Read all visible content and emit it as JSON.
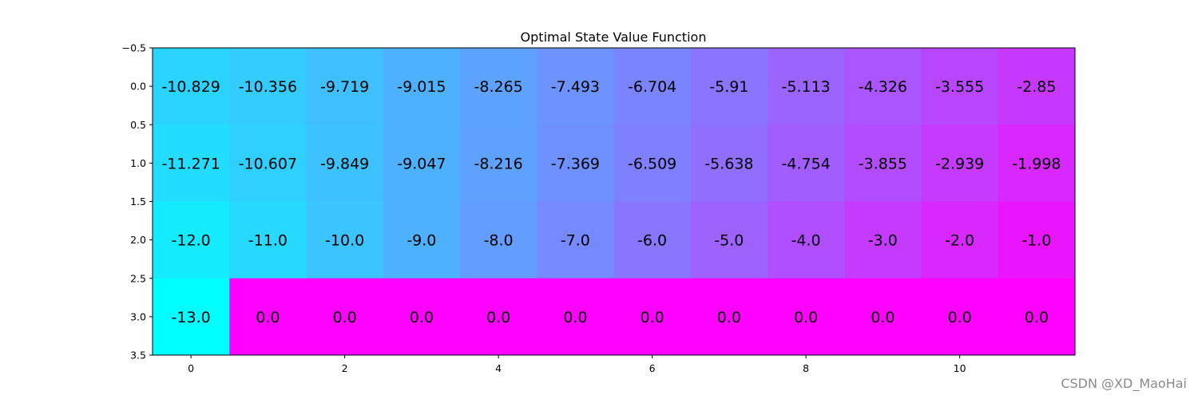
{
  "chart_data": {
    "type": "heatmap",
    "title": "Optimal State Value Function",
    "xlabel": "",
    "ylabel": "",
    "colormap": "cool",
    "color_low": "#00ffff",
    "color_high": "#ff00ff",
    "vmin": -13.0,
    "vmax": 0.0,
    "x_range": [
      -0.5,
      11.5
    ],
    "y_range": [
      -0.5,
      3.5
    ],
    "x_ticks": [
      0,
      2,
      4,
      6,
      8,
      10
    ],
    "x_tick_labels": [
      "0",
      "2",
      "4",
      "6",
      "8",
      "10"
    ],
    "y_ticks": [
      -0.5,
      0.0,
      0.5,
      1.0,
      1.5,
      2.0,
      2.5,
      3.0,
      3.5
    ],
    "y_tick_labels": [
      "−0.5",
      "0.0",
      "0.5",
      "1.0",
      "1.5",
      "2.0",
      "2.5",
      "3.0",
      "3.5"
    ],
    "values": [
      [
        -10.829,
        -10.356,
        -9.719,
        -9.015,
        -8.265,
        -7.493,
        -6.704,
        -5.91,
        -5.113,
        -4.326,
        -3.555,
        -2.85
      ],
      [
        -11.271,
        -10.607,
        -9.849,
        -9.047,
        -8.216,
        -7.369,
        -6.509,
        -5.638,
        -4.754,
        -3.855,
        -2.939,
        -1.998
      ],
      [
        -12.0,
        -11.0,
        -10.0,
        -9.0,
        -8.0,
        -7.0,
        -6.0,
        -5.0,
        -4.0,
        -3.0,
        -2.0,
        -1.0
      ],
      [
        -13.0,
        0.0,
        0.0,
        0.0,
        0.0,
        0.0,
        0.0,
        0.0,
        0.0,
        0.0,
        0.0,
        0.0
      ]
    ],
    "cell_labels": [
      [
        "-10.829",
        "-10.356",
        "-9.719",
        "-9.015",
        "-8.265",
        "-7.493",
        "-6.704",
        "-5.91",
        "-5.113",
        "-4.326",
        "-3.555",
        "-2.85"
      ],
      [
        "-11.271",
        "-10.607",
        "-9.849",
        "-9.047",
        "-8.216",
        "-7.369",
        "-6.509",
        "-5.638",
        "-4.754",
        "-3.855",
        "-2.939",
        "-1.998"
      ],
      [
        "-12.0",
        "-11.0",
        "-10.0",
        "-9.0",
        "-8.0",
        "-7.0",
        "-6.0",
        "-5.0",
        "-4.0",
        "-3.0",
        "-2.0",
        "-1.0"
      ],
      [
        "-13.0",
        "0.0",
        "0.0",
        "0.0",
        "0.0",
        "0.0",
        "0.0",
        "0.0",
        "0.0",
        "0.0",
        "0.0",
        "0.0"
      ]
    ]
  },
  "watermark": "CSDN @XD_MaoHai"
}
